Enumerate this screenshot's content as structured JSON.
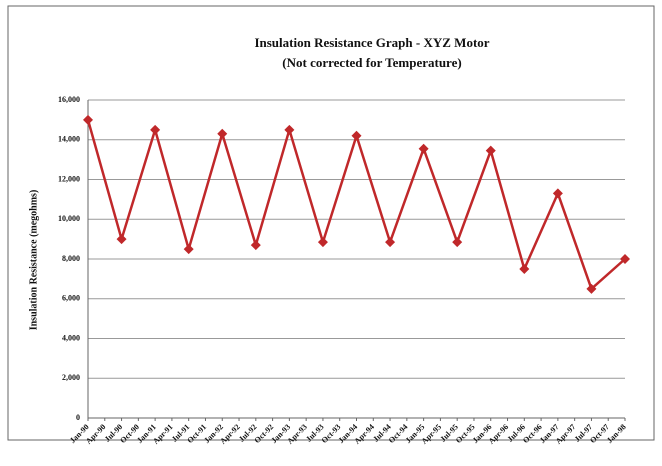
{
  "chart_data": {
    "type": "line",
    "title": "Insulation Resistance Graph - XYZ Motor",
    "subtitle": "(Not corrected for Temperature)",
    "y_label": "Insulation Resistance (megohms)",
    "x": [
      0,
      2,
      4,
      6,
      8,
      10,
      12,
      14,
      16,
      18,
      20,
      22,
      24,
      26,
      28,
      30,
      32
    ],
    "series": [
      {
        "name": "Insulation Resistance",
        "color": "#c0282a",
        "values": [
          15000,
          9000,
          14500,
          8500,
          14300,
          8700,
          14500,
          8850,
          14200,
          8850,
          13550,
          8850,
          13450,
          7500,
          11300,
          6500,
          8000
        ]
      }
    ],
    "xlim": [
      0,
      32
    ],
    "xticks": [
      {
        "value": 0,
        "label": "Jan-90"
      },
      {
        "value": 1,
        "label": "Apr-90"
      },
      {
        "value": 2,
        "label": "Jul-90"
      },
      {
        "value": 3,
        "label": "Oct-90"
      },
      {
        "value": 4,
        "label": "Jan-91"
      },
      {
        "value": 5,
        "label": "Apr-91"
      },
      {
        "value": 6,
        "label": "Jul-91"
      },
      {
        "value": 7,
        "label": "Oct-91"
      },
      {
        "value": 8,
        "label": "Jan-92"
      },
      {
        "value": 9,
        "label": "Apr-92"
      },
      {
        "value": 10,
        "label": "Jul-92"
      },
      {
        "value": 11,
        "label": "Oct-92"
      },
      {
        "value": 12,
        "label": "Jan-93"
      },
      {
        "value": 13,
        "label": "Apr-93"
      },
      {
        "value": 14,
        "label": "Jul-93"
      },
      {
        "value": 15,
        "label": "Oct-93"
      },
      {
        "value": 16,
        "label": "Jan-94"
      },
      {
        "value": 17,
        "label": "Apr-94"
      },
      {
        "value": 18,
        "label": "Jul-94"
      },
      {
        "value": 19,
        "label": "Oct-94"
      },
      {
        "value": 20,
        "label": "Jan-95"
      },
      {
        "value": 21,
        "label": "Apr-95"
      },
      {
        "value": 22,
        "label": "Jul-95"
      },
      {
        "value": 23,
        "label": "Oct-95"
      },
      {
        "value": 24,
        "label": "Jan-96"
      },
      {
        "value": 25,
        "label": "Apr-96"
      },
      {
        "value": 26,
        "label": "Jul-96"
      },
      {
        "value": 27,
        "label": "Oct-96"
      },
      {
        "value": 28,
        "label": "Jan-97"
      },
      {
        "value": 29,
        "label": "Apr-97"
      },
      {
        "value": 30,
        "label": "Jul-97"
      },
      {
        "value": 31,
        "label": "Oct-97"
      },
      {
        "value": 32,
        "label": "Jan-98"
      }
    ],
    "ylim": [
      0,
      16000
    ],
    "yticks": [
      0,
      {
        "value": 2000,
        "label": "2,000"
      },
      {
        "value": 4000,
        "label": "4,000"
      },
      {
        "value": 6000,
        "label": "6,000"
      },
      {
        "value": 8000,
        "label": "8,000"
      },
      {
        "value": 10000,
        "label": "10,000"
      },
      {
        "value": 12000,
        "label": "12,000"
      },
      {
        "value": 14000,
        "label": "14,000"
      },
      {
        "value": 16000,
        "label": "16,000"
      }
    ],
    "grid": true
  }
}
